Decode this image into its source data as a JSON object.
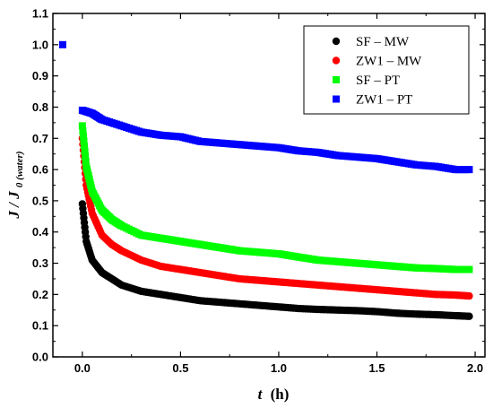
{
  "chart_data": {
    "type": "scatter",
    "title": "",
    "xlabel": {
      "var": "t",
      "unit": "(h)"
    },
    "ylabel": {
      "main": "J / J",
      "sub": "0 (water)"
    },
    "xlim": [
      -0.15,
      2.05
    ],
    "ylim": [
      0.0,
      1.1
    ],
    "xticks": [
      0.0,
      0.5,
      1.0,
      1.5,
      2.0
    ],
    "xtick_labels": [
      "0.0",
      "0.5",
      "1.0",
      "1.5",
      "2.0"
    ],
    "yticks": [
      0.0,
      0.1,
      0.2,
      0.3,
      0.4,
      0.5,
      0.6,
      0.7,
      0.8,
      0.9,
      1.0,
      1.1
    ],
    "ytick_labels": [
      "0.0",
      "0.1",
      "0.2",
      "0.3",
      "0.4",
      "0.5",
      "0.6",
      "0.7",
      "0.8",
      "0.9",
      "1.0",
      "1.1"
    ],
    "grid": false,
    "legend_position": "top-right",
    "initial_point": {
      "x": -0.1,
      "y": 1.0,
      "color": "#0000ff",
      "marker": "square"
    },
    "series": [
      {
        "name": "SF – MW",
        "color": "#000000",
        "marker": "circle",
        "x": [
          0.0,
          0.02,
          0.05,
          0.1,
          0.15,
          0.2,
          0.3,
          0.4,
          0.5,
          0.6,
          0.7,
          0.8,
          0.9,
          1.0,
          1.1,
          1.2,
          1.3,
          1.4,
          1.5,
          1.6,
          1.7,
          1.8,
          1.9,
          1.97
        ],
        "y": [
          0.49,
          0.37,
          0.31,
          0.27,
          0.25,
          0.23,
          0.21,
          0.2,
          0.19,
          0.18,
          0.175,
          0.17,
          0.165,
          0.16,
          0.155,
          0.152,
          0.15,
          0.148,
          0.145,
          0.14,
          0.137,
          0.135,
          0.132,
          0.13
        ]
      },
      {
        "name": "ZW1 – MW",
        "color": "#ff0000",
        "marker": "circle",
        "x": [
          0.0,
          0.02,
          0.05,
          0.1,
          0.15,
          0.2,
          0.3,
          0.4,
          0.5,
          0.6,
          0.7,
          0.8,
          0.9,
          1.0,
          1.1,
          1.2,
          1.3,
          1.4,
          1.5,
          1.6,
          1.7,
          1.8,
          1.9,
          1.97
        ],
        "y": [
          0.7,
          0.55,
          0.46,
          0.39,
          0.36,
          0.34,
          0.31,
          0.29,
          0.28,
          0.27,
          0.26,
          0.25,
          0.245,
          0.24,
          0.235,
          0.23,
          0.225,
          0.22,
          0.215,
          0.21,
          0.205,
          0.2,
          0.198,
          0.195
        ]
      },
      {
        "name": "SF – PT",
        "color": "#00ff00",
        "marker": "square",
        "x": [
          0.0,
          0.02,
          0.05,
          0.1,
          0.15,
          0.2,
          0.3,
          0.4,
          0.5,
          0.6,
          0.7,
          0.8,
          0.9,
          1.0,
          1.1,
          1.2,
          1.3,
          1.4,
          1.5,
          1.6,
          1.7,
          1.8,
          1.9,
          1.97
        ],
        "y": [
          0.74,
          0.61,
          0.53,
          0.47,
          0.44,
          0.42,
          0.39,
          0.38,
          0.37,
          0.36,
          0.35,
          0.34,
          0.335,
          0.33,
          0.32,
          0.31,
          0.305,
          0.3,
          0.295,
          0.29,
          0.285,
          0.283,
          0.28,
          0.28
        ]
      },
      {
        "name": "ZW1 – PT",
        "color": "#0000ff",
        "marker": "square",
        "x": [
          0.0,
          0.05,
          0.1,
          0.2,
          0.3,
          0.4,
          0.5,
          0.6,
          0.7,
          0.8,
          0.9,
          1.0,
          1.1,
          1.2,
          1.3,
          1.4,
          1.5,
          1.6,
          1.7,
          1.8,
          1.9,
          1.97
        ],
        "y": [
          0.79,
          0.78,
          0.76,
          0.74,
          0.72,
          0.71,
          0.705,
          0.69,
          0.685,
          0.68,
          0.675,
          0.67,
          0.66,
          0.655,
          0.645,
          0.64,
          0.635,
          0.625,
          0.615,
          0.61,
          0.6,
          0.6
        ]
      }
    ]
  }
}
